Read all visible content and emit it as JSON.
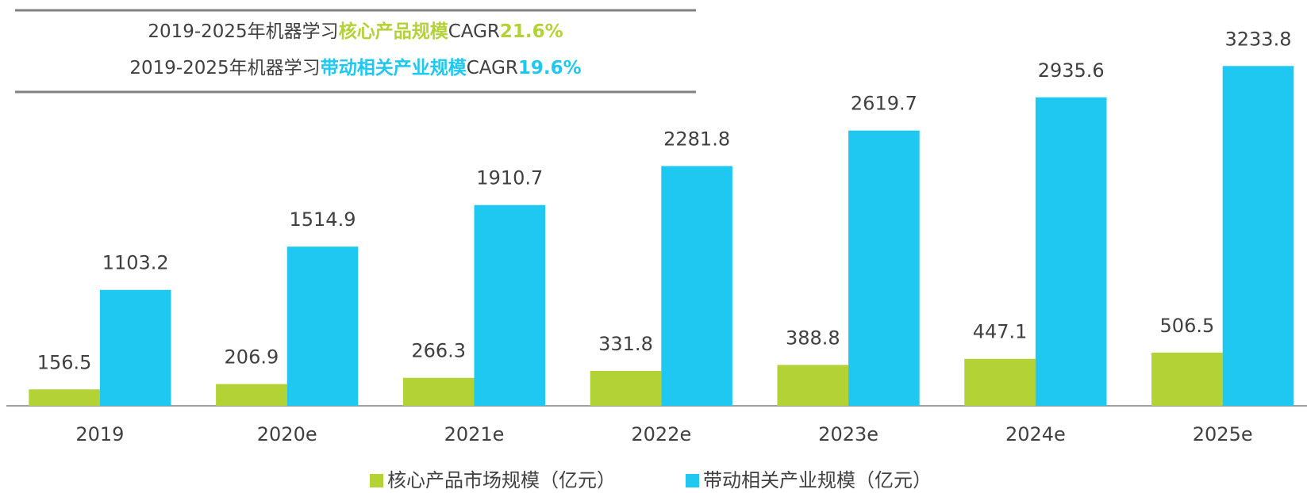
{
  "chart_data": {
    "type": "bar",
    "annotations": [
      {
        "prefix": "2019-2025年机器学习",
        "highlight": "核心产品规模",
        "suffix": "CAGR",
        "value": "21.6%",
        "series": 0
      },
      {
        "prefix": "2019-2025年机器学习",
        "highlight": "带动相关产业规模",
        "suffix": "CAGR",
        "value": "19.6%",
        "series": 1
      }
    ],
    "categories": [
      "2019",
      "2020e",
      "2021e",
      "2022e",
      "2023e",
      "2024e",
      "2025e"
    ],
    "series": [
      {
        "name": "核心产品市场规模（亿元）",
        "color": "#b2d235",
        "values": [
          156.5,
          206.9,
          266.3,
          331.8,
          388.8,
          447.1,
          506.5
        ]
      },
      {
        "name": "带动相关产业规模（亿元）",
        "color": "#1ec8f0",
        "values": [
          1103.2,
          1514.9,
          1910.7,
          2281.8,
          2619.7,
          2935.6,
          3233.8
        ]
      }
    ],
    "ylim": [
      0,
      3500
    ],
    "legend": "bottom"
  }
}
